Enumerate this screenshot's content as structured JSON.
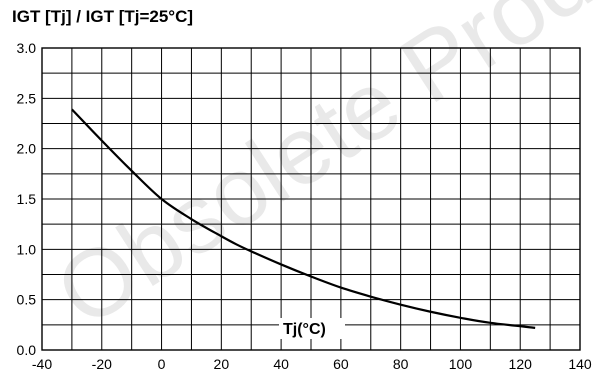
{
  "chart_data": {
    "type": "line",
    "ylabel": "IGT [Tj] / IGT [Tj=25°C]",
    "xlabel": "Tj(°C)",
    "watermark": "Obsolete Product(s)",
    "xlim": [
      -40,
      140
    ],
    "ylim": [
      0.0,
      3.0
    ],
    "x_ticks": [
      -40,
      -20,
      0,
      20,
      40,
      60,
      80,
      100,
      120,
      140
    ],
    "y_ticks": [
      0.0,
      0.5,
      1.0,
      1.5,
      2.0,
      2.5,
      3.0
    ],
    "x_tick_labels": [
      "-40",
      "-20",
      "0",
      "20",
      "40",
      "60",
      "80",
      "100",
      "120",
      "140"
    ],
    "y_tick_labels": [
      "0.0",
      "0.5",
      "1.0",
      "1.5",
      "2.0",
      "2.5",
      "3.0"
    ],
    "grid": true,
    "grid_minor_x": 10,
    "grid_minor_y": 0.25,
    "series": [
      {
        "x": [
          -30,
          -20,
          -10,
          0,
          10,
          20,
          25,
          30,
          40,
          50,
          60,
          70,
          80,
          90,
          100,
          110,
          125
        ],
        "y": [
          2.39,
          2.08,
          1.78,
          1.5,
          1.3,
          1.13,
          1.05,
          0.98,
          0.85,
          0.73,
          0.62,
          0.53,
          0.45,
          0.38,
          0.32,
          0.27,
          0.22
        ]
      }
    ]
  }
}
